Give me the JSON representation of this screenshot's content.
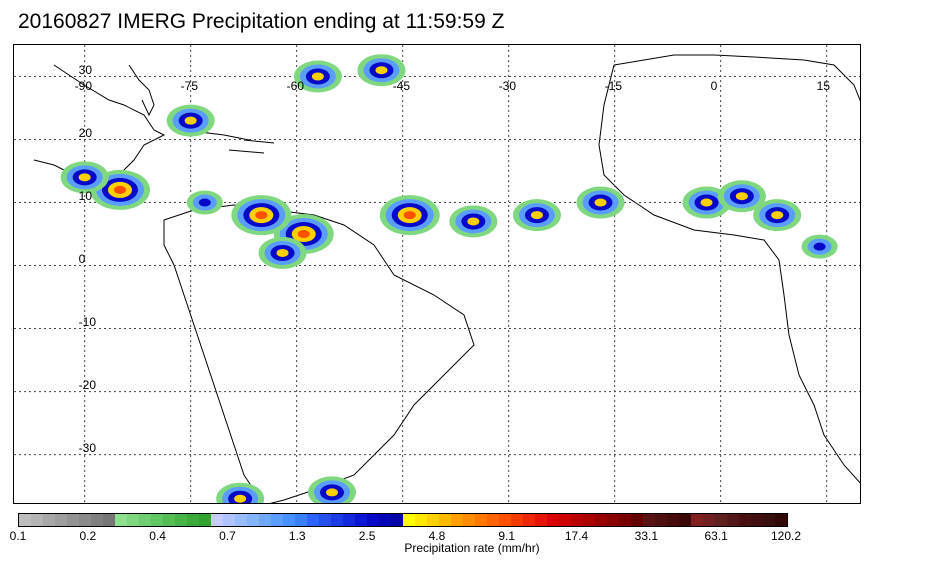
{
  "title": "20160827 IMERG Precipitation ending at 11:59:59 Z",
  "map": {
    "lat_labels": [
      "30",
      "20",
      "10",
      "0",
      "-10",
      "-20",
      "-30"
    ],
    "lon_labels": [
      "-90",
      "-75",
      "-60",
      "-45",
      "-30",
      "-15",
      "0",
      "15"
    ],
    "extent": {
      "lon": [
        -100,
        20
      ],
      "lat": [
        -38,
        35
      ]
    }
  },
  "colorbar": {
    "label": "Precipitation rate (mm/hr)",
    "tick_labels": [
      "0.1",
      "0.2",
      "0.4",
      "0.7",
      "1.3",
      "2.5",
      "4.8",
      "9.1",
      "17.4",
      "33.1",
      "63.1",
      "120.2"
    ],
    "colors": [
      "#bdbdbd",
      "#b3b3b3",
      "#a8a8a8",
      "#9e9e9e",
      "#949494",
      "#8a8a8a",
      "#808080",
      "#767676",
      "#8ee08e",
      "#7fd87f",
      "#70cf70",
      "#62c662",
      "#55bd55",
      "#48b448",
      "#3cab3c",
      "#30a230",
      "#c6cbff",
      "#afc4ff",
      "#98bcff",
      "#82b4ff",
      "#6ca9ff",
      "#5a9cff",
      "#488fff",
      "#3a80f5",
      "#2f63ff",
      "#2550f0",
      "#1c3ce6",
      "#1428dd",
      "#0d16d4",
      "#0808c8",
      "#0505b8",
      "#0303a8",
      "#ffff00",
      "#ffe800",
      "#ffd000",
      "#ffb800",
      "#ffa000",
      "#ff8c00",
      "#ff7800",
      "#ff6400",
      "#ff5000",
      "#f53c00",
      "#ee2800",
      "#e61400",
      "#dd0000",
      "#cc0000",
      "#bb0000",
      "#aa0000",
      "#990000",
      "#880000",
      "#770000",
      "#660000",
      "#5a1414",
      "#501010",
      "#460c0c",
      "#3c0808",
      "#802020",
      "#702020",
      "#602020",
      "#541818",
      "#4a1010",
      "#401010",
      "#381010",
      "#300808"
    ]
  },
  "features": {
    "rain_cells": [
      {
        "lon": -59,
        "lat": 5,
        "level": 3
      },
      {
        "lon": -62,
        "lat": 2,
        "level": 2
      },
      {
        "lon": -85,
        "lat": 12,
        "level": 3
      },
      {
        "lon": -90,
        "lat": 14,
        "level": 2
      },
      {
        "lon": -75,
        "lat": 23,
        "level": 2
      },
      {
        "lon": -57,
        "lat": 30,
        "level": 2
      },
      {
        "lon": -48,
        "lat": 31,
        "level": 2
      },
      {
        "lon": -44,
        "lat": 8,
        "level": 3
      },
      {
        "lon": -35,
        "lat": 7,
        "level": 2
      },
      {
        "lon": -26,
        "lat": 8,
        "level": 2
      },
      {
        "lon": -17,
        "lat": 10,
        "level": 2
      },
      {
        "lon": -2,
        "lat": 10,
        "level": 2
      },
      {
        "lon": 3,
        "lat": 11,
        "level": 2
      },
      {
        "lon": 8,
        "lat": 8,
        "level": 2
      },
      {
        "lon": 14,
        "lat": 3,
        "level": 1
      },
      {
        "lon": -68,
        "lat": -37,
        "level": 2
      },
      {
        "lon": -55,
        "lat": -36,
        "level": 2
      },
      {
        "lon": -65,
        "lat": 8,
        "level": 3
      },
      {
        "lon": -73,
        "lat": 10,
        "level": 1
      }
    ]
  }
}
